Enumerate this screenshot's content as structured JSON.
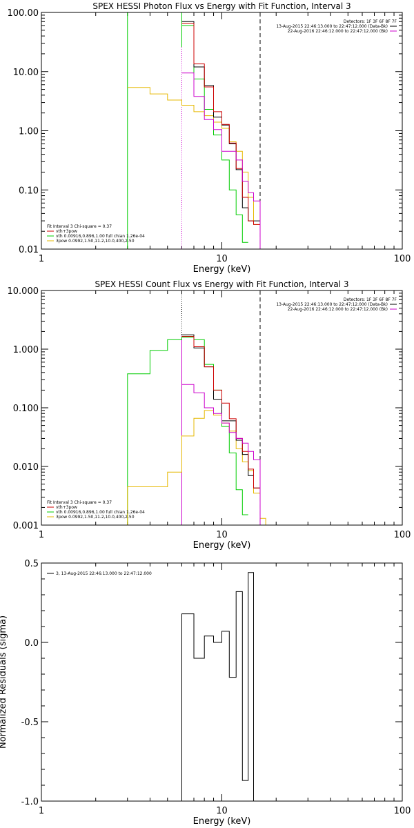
{
  "chart_data": [
    {
      "type": "line",
      "title": "SPEX HESSI Photon Flux vs Energy with Fit Function, Interval 3",
      "xlabel": "Energy (keV)",
      "ylabel": "",
      "xscale": "log",
      "yscale": "log",
      "xlim": [
        1,
        100
      ],
      "ylim": [
        0.01,
        100
      ],
      "xticks": [
        {
          "v": 1,
          "t": "1"
        },
        {
          "v": 10,
          "t": "10"
        },
        {
          "v": 100,
          "t": "100"
        }
      ],
      "yticks": [
        {
          "v": 0.01,
          "t": "0.01"
        },
        {
          "v": 0.1,
          "t": "0.10"
        },
        {
          "v": 1,
          "t": "1.00"
        },
        {
          "v": 10,
          "t": "10.00"
        },
        {
          "v": 100,
          "t": "100.00"
        }
      ],
      "legend_left": [
        {
          "text": "Fit Interval 3   Chi-square = 0.37",
          "color": ""
        },
        {
          "text": "vth+3pow",
          "color": "#cc0000"
        },
        {
          "text": "vth 0.00916,0.896,1.00   full chian 1.26e-04",
          "color": "#00cc00"
        },
        {
          "text": "3pow 0.0992,1.50,11.2,10.0,400,2.50",
          "color": "#e6b800"
        }
      ],
      "legend_right": [
        {
          "text": "Detectors: 1F 3F 6F 8F 7F",
          "color": ""
        },
        {
          "text": "13-Aug-2015 22:46:13.000 to 22:47:12.000 (Data-Bk)",
          "color": "#000000"
        },
        {
          "text": "22-Aug-2016 22:46:12.000 to 22:47:12.000 (Bk)",
          "color": "#cc00cc"
        }
      ],
      "vlines": [
        {
          "x": 3.0,
          "color": "#00cc00",
          "style": "solid",
          "ymin": 0.01,
          "ymax": 100
        },
        {
          "x": 6.0,
          "color": "#00cc00",
          "style": "solid",
          "ymin": 26,
          "ymax": 100
        },
        {
          "x": 6.0,
          "color": "#cc00cc",
          "style": "dotted",
          "ymin": 0.01,
          "ymax": 26
        },
        {
          "x": 16.3,
          "color": "#000000",
          "style": "dashed",
          "ymin": 0.01,
          "ymax": 100
        }
      ],
      "series": [
        {
          "name": "vth",
          "color": "#00cc00",
          "edges": [
            3.0,
            3.5,
            4.0,
            5.0,
            6.0,
            7.0,
            8.0,
            9.0,
            10.0,
            11.0,
            12.0,
            13.0,
            14.0
          ],
          "values": [
            100,
            100,
            100,
            100,
            60,
            7.5,
            2.3,
            0.85,
            0.32,
            0.1,
            0.038,
            0.013
          ]
        },
        {
          "name": "3pow",
          "color": "#e6b800",
          "edges": [
            3.0,
            4.0,
            5.0,
            6.0,
            7.0,
            8.0,
            9.0,
            10.0,
            11.0,
            12.0,
            13.0,
            14.0,
            15.0,
            16.3
          ],
          "values": [
            5.4,
            4.2,
            3.3,
            2.7,
            2.1,
            1.8,
            1.4,
            1.1,
            0.65,
            0.45,
            0.2,
            0.075,
            0.026
          ],
          "drop_to": 0.01
        },
        {
          "name": "Data-Bk",
          "color": "#000000",
          "edges": [
            6.0,
            7.0,
            8.0,
            9.0,
            10.0,
            11.0,
            12.0,
            13.0,
            14.0,
            15.0,
            16.3
          ],
          "values": [
            70,
            12,
            5.8,
            1.7,
            1.25,
            0.6,
            0.22,
            0.05,
            0.03,
            0.03
          ],
          "drop_to": 0.01
        },
        {
          "name": "vth+3pow",
          "color": "#cc0000",
          "edges": [
            6.0,
            7.0,
            8.0,
            9.0,
            10.0,
            11.0,
            12.0,
            13.0,
            14.0,
            15.0,
            16.3
          ],
          "values": [
            65,
            13.5,
            5.5,
            2.1,
            1.28,
            0.62,
            0.23,
            0.075,
            0.03,
            0.026
          ],
          "drop_to": 0.01
        },
        {
          "name": "Bk",
          "color": "#cc00cc",
          "edges": [
            6.0,
            7.0,
            8.0,
            9.0,
            10.0,
            11.0,
            12.0,
            13.0,
            14.0,
            15.0,
            16.3
          ],
          "values": [
            9.5,
            3.8,
            1.55,
            1.05,
            0.45,
            0.45,
            0.32,
            0.14,
            0.09,
            0.065
          ],
          "drop_to": 0.01
        }
      ]
    },
    {
      "type": "line",
      "title": "SPEX HESSI Count Flux vs Energy with Fit Function, Interval 3",
      "xlabel": "Energy (keV)",
      "ylabel": "",
      "xscale": "log",
      "yscale": "log",
      "xlim": [
        1,
        100
      ],
      "ylim": [
        0.001,
        10
      ],
      "xticks": [
        {
          "v": 1,
          "t": "1"
        },
        {
          "v": 10,
          "t": "10"
        },
        {
          "v": 100,
          "t": "100"
        }
      ],
      "yticks": [
        {
          "v": 0.001,
          "t": "0.001"
        },
        {
          "v": 0.01,
          "t": "0.010"
        },
        {
          "v": 0.1,
          "t": "0.100"
        },
        {
          "v": 1,
          "t": "1.000"
        },
        {
          "v": 10,
          "t": "10.000"
        }
      ],
      "legend_left": [
        {
          "text": "Fit Interval 3   Chi-square = 0.37",
          "color": ""
        },
        {
          "text": "vth+3pow",
          "color": "#cc0000"
        },
        {
          "text": "vth 0.00916,0.896,1.00   full chian 1.26e-04",
          "color": "#00cc00"
        },
        {
          "text": "3pow 0.0992,1.50,11.2,10.0,400,2.50",
          "color": "#e6b800"
        }
      ],
      "legend_right": [
        {
          "text": "Detectors: 1F 3F 6F 8F 7F",
          "color": ""
        },
        {
          "text": "13-Aug-2015 22:46:13.000 to 22:47:12.000 (Data-Bk)",
          "color": "#000000"
        },
        {
          "text": "22-Aug-2016 22:46:12.000 to 22:47:12.000 (Bk)",
          "color": "#cc00cc"
        }
      ],
      "vlines": [
        {
          "x": 6.0,
          "color": "#000000",
          "style": "dotted",
          "ymin": 1.7,
          "ymax": 10
        },
        {
          "x": 6.0,
          "color": "#cc00cc",
          "style": "solid",
          "ymin": 0.001,
          "ymax": 1.7
        },
        {
          "x": 16.3,
          "color": "#000000",
          "style": "dashed",
          "ymin": 0.001,
          "ymax": 10
        }
      ],
      "series": [
        {
          "name": "vth",
          "color": "#00cc00",
          "edges": [
            3.0,
            4.0,
            5.0,
            6.0,
            7.0,
            8.0,
            9.0,
            10.0,
            11.0,
            12.0,
            13.0,
            14.0
          ],
          "values": [
            0.38,
            0.95,
            1.45,
            1.6,
            1.45,
            0.55,
            0.2,
            0.048,
            0.017,
            0.004,
            0.0015
          ],
          "start_from": 0.001
        },
        {
          "name": "3pow",
          "color": "#e6b800",
          "edges": [
            3.0,
            4.0,
            5.0,
            6.0,
            7.0,
            8.0,
            9.0,
            10.0,
            11.0,
            12.0,
            13.0,
            14.0,
            15.0,
            16.3,
            17.5
          ],
          "values": [
            0.0045,
            0.0045,
            0.008,
            0.033,
            0.066,
            0.09,
            0.075,
            0.055,
            0.04,
            0.02,
            0.012,
            0.0085,
            0.0035,
            0.0013
          ],
          "start_from": 0.001,
          "drop_to": 0.001
        },
        {
          "name": "Data-Bk",
          "color": "#000000",
          "edges": [
            6.0,
            7.0,
            8.0,
            9.0,
            10.0,
            11.0,
            12.0,
            13.0,
            14.0,
            15.0,
            16.3
          ],
          "values": [
            1.75,
            1.05,
            0.5,
            0.14,
            0.06,
            0.06,
            0.028,
            0.016,
            0.007,
            0.0043
          ],
          "drop_to": 0.001
        },
        {
          "name": "vth+3pow",
          "color": "#cc0000",
          "edges": [
            6.0,
            7.0,
            8.0,
            9.0,
            10.0,
            11.0,
            12.0,
            13.0,
            14.0,
            15.0,
            16.3
          ],
          "values": [
            1.65,
            1.1,
            0.5,
            0.2,
            0.12,
            0.065,
            0.03,
            0.018,
            0.009,
            0.0043
          ],
          "drop_to": 0.001
        },
        {
          "name": "Bk",
          "color": "#cc00cc",
          "edges": [
            6.0,
            7.0,
            8.0,
            9.0,
            10.0,
            11.0,
            12.0,
            13.0,
            14.0,
            15.0,
            16.3
          ],
          "values": [
            0.25,
            0.18,
            0.1,
            0.08,
            0.055,
            0.038,
            0.03,
            0.025,
            0.018,
            0.013
          ],
          "drop_to": 0.001
        }
      ]
    },
    {
      "type": "line",
      "title": "",
      "xlabel": "Energy (keV)",
      "ylabel": "Normalized Residuals (sigma)",
      "xscale": "log",
      "yscale": "linear",
      "xlim": [
        1,
        100
      ],
      "ylim": [
        -1.0,
        0.5
      ],
      "xticks": [
        {
          "v": 1,
          "t": "1"
        },
        {
          "v": 10,
          "t": "10"
        },
        {
          "v": 100,
          "t": "100"
        }
      ],
      "yticks": [
        {
          "v": -1.0,
          "t": "-1.0"
        },
        {
          "v": -0.5,
          "t": "-0.5"
        },
        {
          "v": 0.0,
          "t": "0.0"
        },
        {
          "v": 0.5,
          "t": "0.5"
        }
      ],
      "legend_left": [
        {
          "text": "3, 13-Aug-2015 22:46:13.000 to 22:47:12.000",
          "color": "#000000"
        }
      ],
      "legend_right": [],
      "vlines": [],
      "series": [
        {
          "name": "Residuals",
          "color": "#000000",
          "edges": [
            6.0,
            7.0,
            8.0,
            9.0,
            10.0,
            11.0,
            12.0,
            13.0,
            14.0,
            15.0,
            16.3
          ],
          "values": [
            0.18,
            -0.1,
            0.04,
            0.0,
            0.07,
            -0.22,
            0.32,
            -0.87,
            0.44,
            -1.0
          ],
          "start_from": -1.0,
          "drop_to": -1.0
        }
      ]
    }
  ]
}
